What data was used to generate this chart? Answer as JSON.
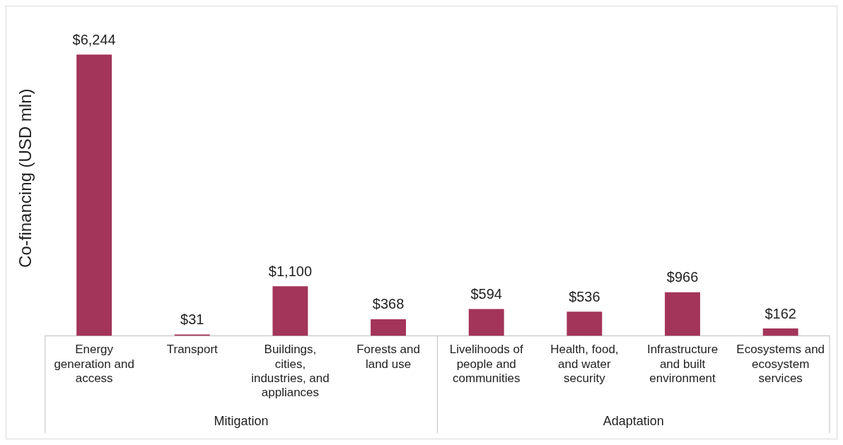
{
  "chart_data": {
    "type": "bar",
    "ylabel": "Co-financing (USD mln)",
    "categories": [
      "Energy generation and access",
      "Transport",
      "Buildings, cities, industries, and appliances",
      "Forests and land use",
      "Livelihoods of people and communities",
      "Health, food, and water security",
      "Infrastructure and built environment",
      "Ecosystems and ecosystem services"
    ],
    "values": [
      6244,
      31,
      1100,
      368,
      594,
      536,
      966,
      162
    ],
    "value_labels": [
      "$6,244",
      "$31",
      "$1,100",
      "$368",
      "$594",
      "$536",
      "$966",
      "$162"
    ],
    "color": "#a3345a",
    "annotations": [
      "Mitigation",
      "Adaptation"
    ],
    "grid": false,
    "legend": false
  }
}
